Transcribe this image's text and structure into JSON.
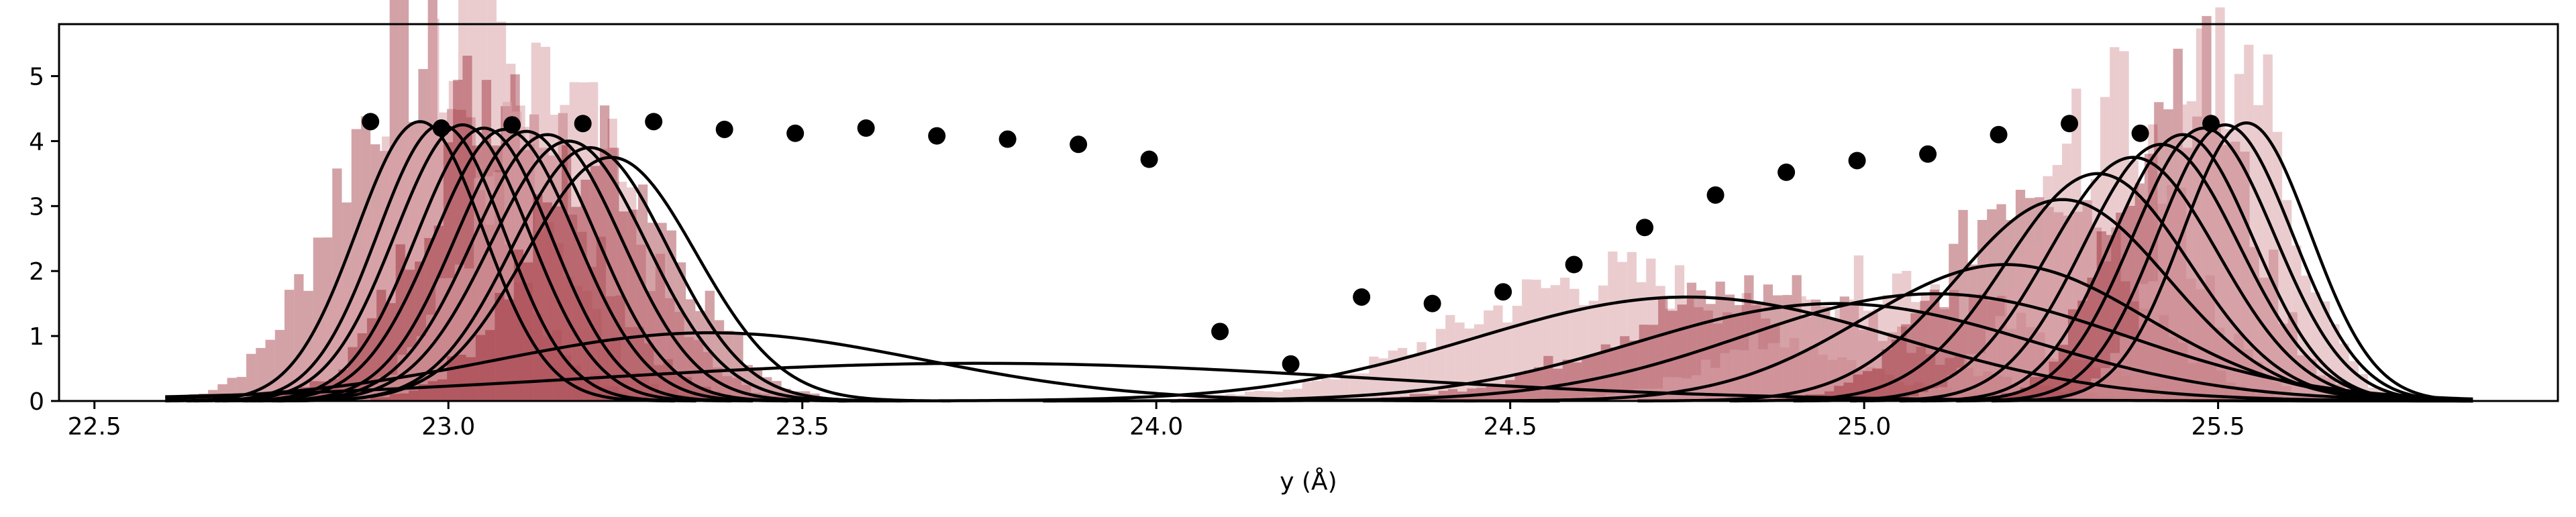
{
  "chart_data": {
    "type": "scatter",
    "title": "",
    "xlabel": "y (Å)",
    "ylabel": "",
    "xlim": [
      22.45,
      25.98
    ],
    "ylim": [
      0,
      5.8
    ],
    "x_ticks": [
      "22.5",
      "23.0",
      "23.5",
      "24.0",
      "24.5",
      "25.0",
      "25.5"
    ],
    "x_tick_values": [
      22.5,
      23.0,
      23.5,
      24.0,
      24.5,
      25.0,
      25.5
    ],
    "y_ticks": [
      "0",
      "1",
      "2",
      "3",
      "4",
      "5"
    ],
    "y_tick_values": [
      0,
      1,
      2,
      3,
      4,
      5
    ],
    "grid": false,
    "legend": "none",
    "colors": {
      "fill_dark": "#8b0a14",
      "fill_light": "#d9a3a8",
      "curve": "#000000",
      "point": "#000000"
    },
    "histogram_groups": [
      {
        "center": 22.95,
        "width": 0.11,
        "peak": 5.3
      },
      {
        "center": 23.02,
        "width": 0.11,
        "peak": 5.6
      },
      {
        "center": 23.08,
        "width": 0.11,
        "peak": 5.1
      },
      {
        "center": 23.15,
        "width": 0.11,
        "peak": 4.6
      },
      {
        "center": 23.22,
        "width": 0.11,
        "peak": 3.8
      },
      {
        "center": 24.65,
        "width": 0.22,
        "peak": 1.9
      },
      {
        "center": 24.85,
        "width": 0.2,
        "peak": 1.7
      },
      {
        "center": 25.05,
        "width": 0.17,
        "peak": 1.9
      },
      {
        "center": 25.25,
        "width": 0.12,
        "peak": 3.6
      },
      {
        "center": 25.35,
        "width": 0.1,
        "peak": 4.4
      },
      {
        "center": 25.45,
        "width": 0.09,
        "peak": 5.2
      },
      {
        "center": 25.52,
        "width": 0.08,
        "peak": 5.5
      }
    ],
    "gaussian_curves": [
      {
        "mu": 22.96,
        "sigma": 0.09,
        "amp": 4.3
      },
      {
        "mu": 22.99,
        "sigma": 0.09,
        "amp": 4.25
      },
      {
        "mu": 23.02,
        "sigma": 0.095,
        "amp": 4.25
      },
      {
        "mu": 23.05,
        "sigma": 0.095,
        "amp": 4.2
      },
      {
        "mu": 23.08,
        "sigma": 0.1,
        "amp": 4.18
      },
      {
        "mu": 23.11,
        "sigma": 0.1,
        "amp": 4.15
      },
      {
        "mu": 23.14,
        "sigma": 0.105,
        "amp": 4.1
      },
      {
        "mu": 23.17,
        "sigma": 0.11,
        "amp": 4.0
      },
      {
        "mu": 23.2,
        "sigma": 0.11,
        "amp": 3.9
      },
      {
        "mu": 23.23,
        "sigma": 0.12,
        "amp": 3.75
      },
      {
        "mu": 23.37,
        "sigma": 0.3,
        "amp": 1.05
      },
      {
        "mu": 23.75,
        "sigma": 0.55,
        "amp": 0.58
      },
      {
        "mu": 24.75,
        "sigma": 0.3,
        "amp": 1.6
      },
      {
        "mu": 24.96,
        "sigma": 0.28,
        "amp": 1.5
      },
      {
        "mu": 25.1,
        "sigma": 0.27,
        "amp": 1.65
      },
      {
        "mu": 25.2,
        "sigma": 0.2,
        "amp": 2.1
      },
      {
        "mu": 25.28,
        "sigma": 0.15,
        "amp": 3.1
      },
      {
        "mu": 25.33,
        "sigma": 0.13,
        "amp": 3.5
      },
      {
        "mu": 25.38,
        "sigma": 0.12,
        "amp": 3.75
      },
      {
        "mu": 25.42,
        "sigma": 0.11,
        "amp": 3.95
      },
      {
        "mu": 25.45,
        "sigma": 0.1,
        "amp": 4.1
      },
      {
        "mu": 25.48,
        "sigma": 0.1,
        "amp": 4.2
      },
      {
        "mu": 25.51,
        "sigma": 0.095,
        "amp": 4.25
      },
      {
        "mu": 25.54,
        "sigma": 0.09,
        "amp": 4.28
      }
    ],
    "series": [
      {
        "x": [
          22.89,
          22.99,
          23.09,
          23.19,
          23.29,
          23.39,
          23.49,
          23.59,
          23.69,
          23.79,
          23.89,
          23.99,
          24.09,
          24.19,
          24.29,
          24.39,
          24.49,
          24.59,
          24.69,
          24.79,
          24.89,
          24.99,
          25.09,
          25.19,
          25.29,
          25.39,
          25.49
        ],
        "values": [
          4.3,
          4.2,
          4.25,
          4.27,
          4.3,
          4.18,
          4.12,
          4.2,
          4.08,
          4.03,
          3.95,
          3.72,
          1.07,
          0.57,
          1.6,
          1.5,
          1.68,
          2.1,
          2.67,
          3.17,
          3.52,
          3.7,
          3.8,
          4.1,
          4.27,
          4.12,
          4.27
        ]
      }
    ]
  }
}
